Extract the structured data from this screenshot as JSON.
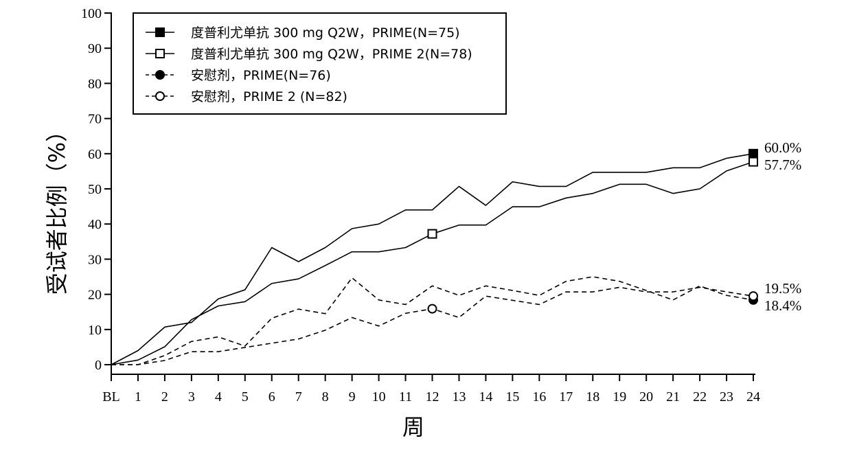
{
  "chart_data": {
    "type": "line",
    "xlabel": "周",
    "ylabel": "受试者比例（%）",
    "categories": [
      "BL",
      "1",
      "2",
      "3",
      "4",
      "5",
      "6",
      "7",
      "8",
      "9",
      "10",
      "11",
      "12",
      "13",
      "14",
      "15",
      "16",
      "17",
      "18",
      "19",
      "20",
      "21",
      "22",
      "23",
      "24"
    ],
    "ylim": [
      0,
      100
    ],
    "yticks": [
      0,
      10,
      20,
      30,
      40,
      50,
      60,
      70,
      80,
      90,
      100
    ],
    "grid": false,
    "legend_position": "top-left",
    "series": [
      {
        "name": "度普利尤单抗 300 mg Q2W，PRIME(N=75)",
        "line_style": "solid",
        "marker": "filled-square",
        "values": [
          0,
          4,
          10.7,
          12,
          18.7,
          21.3,
          33.3,
          29.3,
          33.3,
          38.7,
          40,
          44,
          44,
          50.7,
          45.3,
          52,
          50.7,
          50.7,
          54.7,
          54.7,
          54.7,
          56,
          56,
          58.7,
          60.0
        ]
      },
      {
        "name": "度普利尤单抗 300 mg Q2W，PRIME 2(N=78)",
        "line_style": "solid",
        "marker": "open-square",
        "values": [
          0,
          1.3,
          5.1,
          12.8,
          16.7,
          17.9,
          23.1,
          24.4,
          28.2,
          32.1,
          32.1,
          33.3,
          37.2,
          39.7,
          39.7,
          44.9,
          44.9,
          47.4,
          48.7,
          51.3,
          51.3,
          48.7,
          50,
          55.1,
          57.7
        ]
      },
      {
        "name": "安慰剂，PRIME(N=76)",
        "line_style": "dashed",
        "marker": "filled-circle",
        "values": [
          0,
          0,
          2.6,
          6.6,
          7.9,
          5.3,
          13.2,
          15.8,
          14.5,
          24.7,
          18.4,
          17.1,
          22.4,
          19.7,
          22.4,
          21.1,
          19.7,
          23.7,
          25,
          23.7,
          21.1,
          18.4,
          22.4,
          19.7,
          18.4
        ]
      },
      {
        "name": "安慰剂，PRIME 2 (N=82)",
        "line_style": "dashed",
        "marker": "open-circle",
        "values": [
          0,
          0,
          1.2,
          3.7,
          3.7,
          4.9,
          6.1,
          7.3,
          9.8,
          13.4,
          11,
          14.6,
          15.9,
          13.4,
          19.5,
          18.3,
          17.1,
          20.7,
          20.7,
          22,
          20.7,
          20.7,
          22,
          20.7,
          19.5
        ]
      }
    ],
    "end_labels": [
      "60.0%",
      "57.7%",
      "19.5%",
      "18.4%"
    ]
  }
}
